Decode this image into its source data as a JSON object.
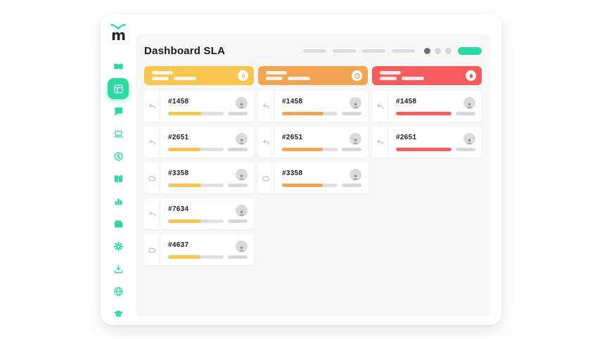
{
  "app": {
    "accent": "#2BD9A2",
    "logo": {
      "letter": "m",
      "mark": "swoosh-icon"
    }
  },
  "page": {
    "title": "Dashboard SLA"
  },
  "topnav": {
    "dash_count": 4,
    "dots": [
      "dark",
      "light",
      "light"
    ],
    "pill_color": "#2BD9A2"
  },
  "sidebar": {
    "items": [
      {
        "icon": "ticket-icon",
        "active": false
      },
      {
        "icon": "dashboard-icon",
        "active": true
      },
      {
        "icon": "chat-icon",
        "active": false
      },
      {
        "icon": "laptop-icon",
        "active": false
      },
      {
        "icon": "coin-icon",
        "active": false
      },
      {
        "icon": "book-icon",
        "active": false
      },
      {
        "icon": "bar-chart-icon",
        "active": false
      },
      {
        "icon": "wallet-icon",
        "active": false
      },
      {
        "icon": "gear-icon",
        "active": false
      },
      {
        "icon": "download-icon",
        "active": false
      },
      {
        "icon": "globe-icon",
        "active": false
      },
      {
        "icon": "graduation-cap-icon",
        "active": false
      }
    ]
  },
  "board": {
    "columns": [
      {
        "color": "#F8C54F",
        "status_icon": "pause-icon",
        "cards": [
          {
            "id": "#1458",
            "action_icon": "reply-icon",
            "progress": 59
          },
          {
            "id": "#2651",
            "action_icon": "reply-icon",
            "progress": 58
          },
          {
            "id": "#3358",
            "action_icon": "cloud-icon",
            "progress": 60
          },
          {
            "id": "#7634",
            "action_icon": "reply-icon",
            "progress": 59
          },
          {
            "id": "#4637",
            "action_icon": "cloud-icon",
            "progress": 58
          }
        ]
      },
      {
        "color": "#F2A452",
        "status_icon": "clock-icon",
        "cards": [
          {
            "id": "#1458",
            "action_icon": "reply-icon",
            "progress": 75
          },
          {
            "id": "#2651",
            "action_icon": "reply-icon",
            "progress": 74
          },
          {
            "id": "#3358",
            "action_icon": "cloud-icon",
            "progress": 74
          }
        ]
      },
      {
        "color": "#F75D5D",
        "status_icon": "alert-icon",
        "cards": [
          {
            "id": "#1458",
            "action_icon": "reply-icon",
            "progress": 100
          },
          {
            "id": "#2651",
            "action_icon": "reply-icon",
            "progress": 100
          }
        ]
      }
    ]
  }
}
